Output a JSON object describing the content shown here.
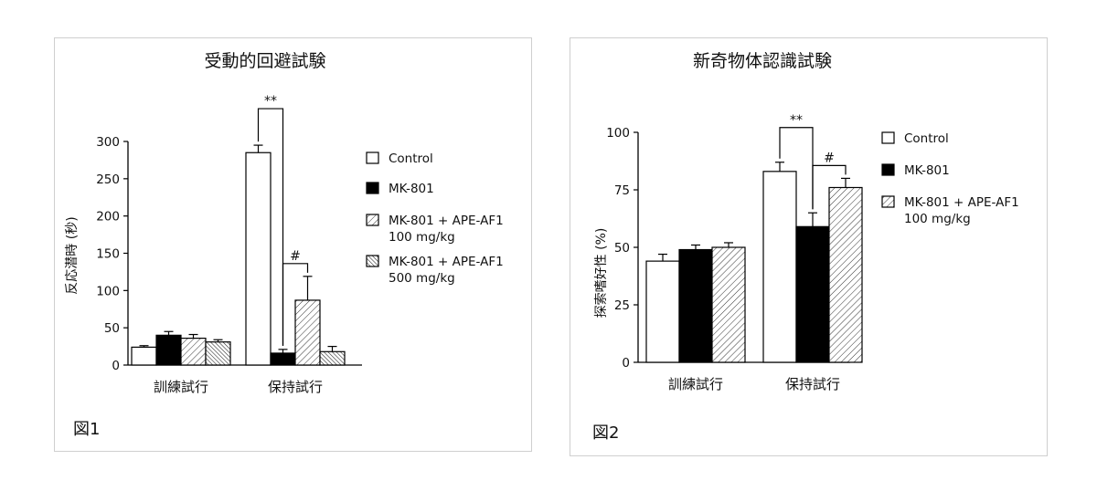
{
  "patterns": {
    "Control": "white",
    "MK-801": "black",
    "MK-801 + APE-AF1 100 mg/kg": "hatch-sparse",
    "MK-801 + APE-AF1 500 mg/kg": "hatch-dense"
  },
  "chart_data": [
    {
      "type": "bar",
      "figure_label": "図1",
      "title": "受動的回避試験",
      "ylabel": "反応潜時 (秒)",
      "xlabel": "",
      "ylim": [
        0,
        300
      ],
      "yticks": [
        0,
        50,
        100,
        150,
        200,
        250,
        300
      ],
      "categories": [
        "訓練試行",
        "保持試行"
      ],
      "series": [
        {
          "name": "Control",
          "values": [
            24,
            285
          ],
          "errors": [
            2,
            10
          ]
        },
        {
          "name": "MK-801",
          "values": [
            40,
            16
          ],
          "errors": [
            5,
            5
          ]
        },
        {
          "name": "MK-801 + APE-AF1 100 mg/kg",
          "values": [
            36,
            87
          ],
          "errors": [
            5,
            32
          ]
        },
        {
          "name": "MK-801 + APE-AF1 500 mg/kg",
          "values": [
            31,
            18
          ],
          "errors": [
            3,
            7
          ]
        }
      ],
      "legend_position": "right",
      "legend": [
        {
          "lines": [
            "Control"
          ],
          "series": "Control"
        },
        {
          "lines": [
            "MK-801"
          ],
          "series": "MK-801"
        },
        {
          "lines": [
            "MK-801 + APE-AF1",
            "100 mg/kg"
          ],
          "series": "MK-801 + APE-AF1 100 mg/kg"
        },
        {
          "lines": [
            "MK-801 + APE-AF1",
            "500 mg/kg"
          ],
          "series": "MK-801 + APE-AF1 500 mg/kg"
        }
      ],
      "annotations": [
        {
          "text": "**",
          "category": 1,
          "from_series": 0,
          "to_series": 1
        },
        {
          "text": "#",
          "category": 1,
          "from_series": 1,
          "to_series": 2
        }
      ]
    },
    {
      "type": "bar",
      "figure_label": "図2",
      "title": "新奇物体認識試験",
      "ylabel": "探索嗜好性 (%)",
      "xlabel": "",
      "ylim": [
        0,
        100
      ],
      "yticks": [
        0,
        25,
        50,
        75,
        100
      ],
      "categories": [
        "訓練試行",
        "保持試行"
      ],
      "series": [
        {
          "name": "Control",
          "values": [
            44,
            83
          ],
          "errors": [
            3,
            4
          ]
        },
        {
          "name": "MK-801",
          "values": [
            49,
            59
          ],
          "errors": [
            2,
            6
          ]
        },
        {
          "name": "MK-801 + APE-AF1 100 mg/kg",
          "values": [
            50,
            76
          ],
          "errors": [
            2,
            4
          ]
        }
      ],
      "legend_position": "right",
      "legend": [
        {
          "lines": [
            "Control"
          ],
          "series": "Control"
        },
        {
          "lines": [
            "MK-801"
          ],
          "series": "MK-801"
        },
        {
          "lines": [
            "MK-801 + APE-AF1",
            "100 mg/kg"
          ],
          "series": "MK-801 + APE-AF1 100 mg/kg"
        }
      ],
      "annotations": [
        {
          "text": "**",
          "category": 1,
          "from_series": 0,
          "to_series": 1
        },
        {
          "text": "#",
          "category": 1,
          "from_series": 1,
          "to_series": 2
        }
      ]
    }
  ]
}
